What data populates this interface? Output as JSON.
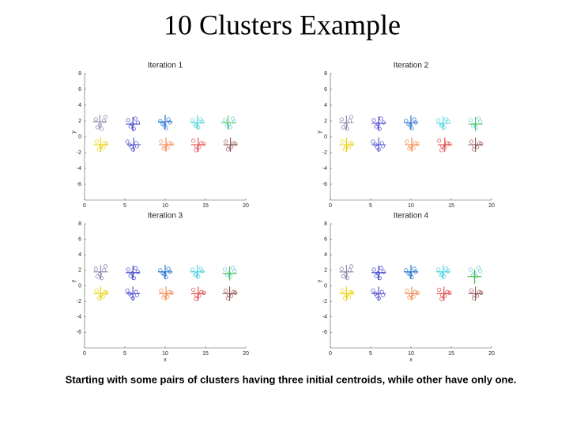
{
  "title": "10 Clusters Example",
  "caption": "Starting with some pairs of clusters having three initial centroids, while other have only one.",
  "clusters": [
    {
      "color": "#7777aa",
      "x": [
        1.4,
        1.9,
        2.4,
        2.1,
        1.6,
        2.6
      ],
      "y": [
        2.2,
        1.5,
        2.0,
        1.0,
        1.2,
        2.5
      ]
    },
    {
      "color": "#e8d000",
      "x": [
        1.5,
        2.0,
        2.5,
        1.8,
        2.3,
        2.7
      ],
      "y": [
        -0.6,
        -1.2,
        -0.8,
        -1.6,
        -1.4,
        -0.9
      ]
    },
    {
      "color": "#3a3acc",
      "x": [
        5.4,
        5.9,
        6.3,
        6.1,
        5.7,
        6.6
      ],
      "y": [
        2.1,
        1.6,
        2.3,
        1.0,
        1.3,
        1.8
      ]
    },
    {
      "color": "#4a4ad0",
      "x": [
        5.3,
        5.8,
        6.4,
        6.0,
        5.6,
        6.5
      ],
      "y": [
        -0.6,
        -1.3,
        -0.8,
        -1.6,
        -1.0,
        -1.2
      ]
    },
    {
      "color": "#1a6ad0",
      "x": [
        9.4,
        9.9,
        10.4,
        10.1,
        9.7,
        10.6
      ],
      "y": [
        2.0,
        1.5,
        2.2,
        1.1,
        1.6,
        1.8
      ]
    },
    {
      "color": "#f08040",
      "x": [
        9.5,
        10.0,
        10.5,
        9.8,
        10.3,
        10.8
      ],
      "y": [
        -0.6,
        -1.2,
        -0.8,
        -1.5,
        -1.4,
        -0.9
      ]
    },
    {
      "color": "#40d0e0",
      "x": [
        13.4,
        13.9,
        14.4,
        14.1,
        13.7,
        14.6
      ],
      "y": [
        2.1,
        1.5,
        2.2,
        1.2,
        1.4,
        1.9
      ]
    },
    {
      "color": "#e04040",
      "x": [
        13.5,
        13.9,
        14.5,
        13.8,
        14.2,
        14.8
      ],
      "y": [
        -0.5,
        -1.2,
        -0.8,
        -1.7,
        -1.3,
        -0.9
      ]
    },
    {
      "color": "#60c8e0",
      "x": [
        17.4,
        17.9,
        18.4,
        18.1,
        17.7,
        18.6
      ],
      "y": [
        2.1,
        1.6,
        2.3,
        1.2,
        1.4,
        1.9
      ]
    },
    {
      "color": "#a05050",
      "x": [
        17.5,
        17.9,
        18.5,
        17.8,
        18.2,
        18.7
      ],
      "y": [
        -0.6,
        -1.2,
        -0.8,
        -1.6,
        -1.3,
        -0.9
      ]
    }
  ],
  "centroid_colors": [
    "#8888aa",
    "#e8d000",
    "#3a3acc",
    "#4a4ad0",
    "#1a6ad0",
    "#f08040",
    "#40d0e0",
    "#e04040",
    "#40c040",
    "#805050"
  ],
  "chart_data": [
    {
      "type": "scatter",
      "title": "Iteration 1",
      "ylabel": "y",
      "xlim": [
        0,
        20
      ],
      "ylim": [
        -8,
        8
      ],
      "xticks": [
        0,
        5,
        10,
        15,
        20
      ],
      "yticks": [
        8,
        6,
        4,
        2,
        0,
        -2,
        -4,
        -6
      ],
      "centroids": {
        "x": [
          1.9,
          2.0,
          6.0,
          6.1,
          10.0,
          10.1,
          14.0,
          14.1,
          17.8,
          18.1
        ],
        "y": [
          1.9,
          -1.0,
          1.6,
          -1.0,
          1.9,
          -1.0,
          1.8,
          -1.0,
          1.8,
          -1.0
        ]
      }
    },
    {
      "type": "scatter",
      "title": "Iteration 2",
      "ylabel": "y",
      "xlim": [
        0,
        20
      ],
      "ylim": [
        -8,
        8
      ],
      "xticks": [
        0,
        5,
        10,
        15,
        20
      ],
      "yticks": [
        8,
        6,
        4,
        2,
        0,
        -2,
        -4,
        -6
      ],
      "centroids": {
        "x": [
          2.0,
          2.0,
          6.0,
          6.0,
          10.0,
          10.1,
          14.0,
          14.2,
          18.0,
          18.0
        ],
        "y": [
          1.8,
          -1.0,
          1.7,
          -1.0,
          1.8,
          -1.0,
          1.7,
          -1.0,
          1.6,
          -1.0
        ]
      }
    },
    {
      "type": "scatter",
      "title": "Iteration 3",
      "xlabel": "",
      "ylabel": "y",
      "xlim": [
        0,
        20
      ],
      "ylim": [
        -8,
        8
      ],
      "xticks": [
        0,
        5,
        10,
        15,
        20
      ],
      "yticks": [
        8,
        6,
        4,
        2,
        0,
        -2,
        -4,
        -6
      ],
      "centroids": {
        "x": [
          2.0,
          2.0,
          6.0,
          6.0,
          10.0,
          10.1,
          14.0,
          14.1,
          18.0,
          18.0
        ],
        "y": [
          1.8,
          -1.0,
          1.7,
          -1.0,
          1.8,
          -1.0,
          1.8,
          -1.0,
          1.6,
          -1.0
        ]
      }
    },
    {
      "type": "scatter",
      "title": "Iteration 4",
      "ylabel": "y",
      "xlim": [
        0,
        20
      ],
      "ylim": [
        -8,
        8
      ],
      "xticks": [
        0,
        5,
        10,
        15,
        20
      ],
      "yticks": [
        8,
        6,
        4,
        2,
        0,
        -2,
        -4,
        -6
      ],
      "centroids": {
        "x": [
          2.0,
          2.0,
          6.0,
          6.0,
          10.0,
          10.1,
          14.0,
          14.1,
          17.9,
          18.0
        ],
        "y": [
          1.8,
          -1.0,
          1.7,
          -1.0,
          1.8,
          -1.0,
          1.8,
          -1.0,
          1.2,
          -1.0
        ]
      }
    }
  ],
  "xlabels": [
    "x",
    "x"
  ]
}
